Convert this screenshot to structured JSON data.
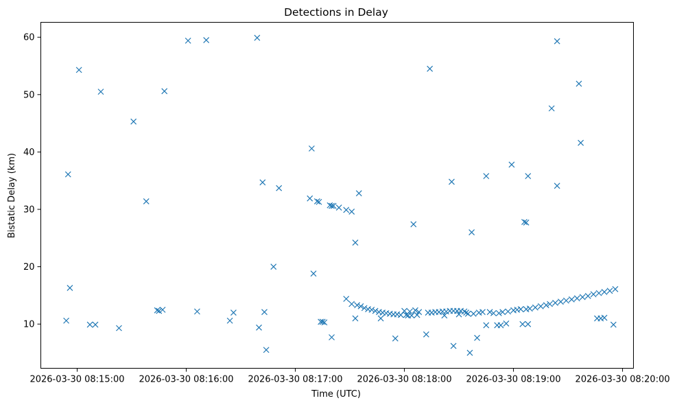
{
  "chart_data": {
    "type": "scatter",
    "title": "Detections in Delay",
    "xlabel": "Time (UTC)",
    "ylabel": "Bistatic Delay (km)",
    "marker": "x",
    "color": "#1f77b4",
    "grid": false,
    "x_ticks": [
      "2026-03-30 08:15:00",
      "2026-03-30 08:16:00",
      "2026-03-30 08:17:00",
      "2026-03-30 08:18:00",
      "2026-03-30 08:19:00",
      "2026-03-30 08:20:00"
    ],
    "y_ticks": [
      10,
      20,
      30,
      40,
      50,
      60
    ],
    "xlim": [
      "2026-03-30 08:14:40",
      "2026-03-30 08:20:06"
    ],
    "ylim": [
      2.3,
      62.6
    ],
    "points": [
      [
        "08:14:54",
        10.6
      ],
      [
        "08:14:55",
        36.1
      ],
      [
        "08:14:56",
        16.3
      ],
      [
        "08:15:01",
        54.3
      ],
      [
        "08:15:07",
        9.9
      ],
      [
        "08:15:10",
        9.9
      ],
      [
        "08:15:13",
        50.5
      ],
      [
        "08:15:23",
        9.3
      ],
      [
        "08:15:31",
        45.3
      ],
      [
        "08:15:38",
        31.4
      ],
      [
        "08:15:44",
        12.4
      ],
      [
        "08:15:45",
        12.3
      ],
      [
        "08:15:47",
        12.5
      ],
      [
        "08:15:48",
        50.6
      ],
      [
        "08:16:01",
        59.4
      ],
      [
        "08:16:06",
        12.2
      ],
      [
        "08:16:11",
        59.5
      ],
      [
        "08:16:24",
        10.6
      ],
      [
        "08:16:26",
        12.0
      ],
      [
        "08:16:39",
        59.9
      ],
      [
        "08:16:40",
        9.4
      ],
      [
        "08:16:42",
        34.7
      ],
      [
        "08:16:43",
        12.1
      ],
      [
        "08:16:44",
        5.5
      ],
      [
        "08:16:48",
        20.0
      ],
      [
        "08:16:51",
        33.7
      ],
      [
        "08:17:08",
        31.9
      ],
      [
        "08:17:09",
        40.6
      ],
      [
        "08:17:10",
        18.8
      ],
      [
        "08:17:12",
        31.4
      ],
      [
        "08:17:13",
        31.3
      ],
      [
        "08:17:14",
        10.4
      ],
      [
        "08:17:15",
        10.4
      ],
      [
        "08:17:16",
        10.3
      ],
      [
        "08:17:19",
        30.7
      ],
      [
        "08:17:20",
        30.6
      ],
      [
        "08:17:20",
        7.7
      ],
      [
        "08:17:21",
        30.6
      ],
      [
        "08:17:24",
        30.3
      ],
      [
        "08:17:28",
        14.4
      ],
      [
        "08:17:28",
        29.9
      ],
      [
        "08:17:31",
        29.6
      ],
      [
        "08:17:31",
        13.5
      ],
      [
        "08:17:33",
        24.2
      ],
      [
        "08:17:33",
        11.0
      ],
      [
        "08:17:34",
        13.3
      ],
      [
        "08:17:35",
        32.8
      ],
      [
        "08:17:36",
        13.1
      ],
      [
        "08:17:38",
        12.8
      ],
      [
        "08:17:40",
        12.6
      ],
      [
        "08:17:42",
        12.5
      ],
      [
        "08:17:44",
        12.3
      ],
      [
        "08:17:46",
        12.1
      ],
      [
        "08:17:47",
        11.0
      ],
      [
        "08:17:48",
        12.0
      ],
      [
        "08:17:50",
        11.9
      ],
      [
        "08:17:52",
        11.8
      ],
      [
        "08:17:54",
        11.7
      ],
      [
        "08:17:55",
        7.5
      ],
      [
        "08:17:56",
        11.7
      ],
      [
        "08:17:58",
        11.6
      ],
      [
        "08:18:00",
        12.3
      ],
      [
        "08:18:01",
        11.6
      ],
      [
        "08:18:02",
        11.5
      ],
      [
        "08:18:03",
        12.2
      ],
      [
        "08:18:04",
        11.5
      ],
      [
        "08:18:05",
        27.4
      ],
      [
        "08:18:06",
        12.4
      ],
      [
        "08:18:07",
        11.6
      ],
      [
        "08:18:08",
        12.1
      ],
      [
        "08:18:12",
        8.2
      ],
      [
        "08:18:13",
        12.0
      ],
      [
        "08:18:14",
        54.5
      ],
      [
        "08:18:15",
        12.0
      ],
      [
        "08:18:17",
        12.1
      ],
      [
        "08:18:19",
        12.1
      ],
      [
        "08:18:21",
        12.2
      ],
      [
        "08:18:22",
        11.5
      ],
      [
        "08:18:23",
        12.2
      ],
      [
        "08:18:25",
        12.3
      ],
      [
        "08:18:26",
        34.8
      ],
      [
        "08:18:27",
        12.3
      ],
      [
        "08:18:27",
        6.2
      ],
      [
        "08:18:29",
        12.3
      ],
      [
        "08:18:30",
        11.7
      ],
      [
        "08:18:31",
        12.3
      ],
      [
        "08:18:33",
        12.2
      ],
      [
        "08:18:34",
        12.0
      ],
      [
        "08:18:35",
        11.8
      ],
      [
        "08:18:36",
        5.0
      ],
      [
        "08:18:37",
        26.0
      ],
      [
        "08:18:38",
        11.8
      ],
      [
        "08:18:40",
        7.6
      ],
      [
        "08:18:41",
        12.0
      ],
      [
        "08:18:43",
        12.1
      ],
      [
        "08:18:45",
        35.8
      ],
      [
        "08:18:45",
        9.8
      ],
      [
        "08:18:47",
        12.1
      ],
      [
        "08:18:49",
        11.9
      ],
      [
        "08:18:51",
        9.8
      ],
      [
        "08:18:52",
        11.9
      ],
      [
        "08:18:53",
        9.8
      ],
      [
        "08:18:54",
        12.1
      ],
      [
        "08:18:56",
        10.1
      ],
      [
        "08:18:57",
        12.2
      ],
      [
        "08:18:59",
        37.8
      ],
      [
        "08:19:00",
        12.4
      ],
      [
        "08:19:02",
        12.5
      ],
      [
        "08:19:04",
        12.6
      ],
      [
        "08:19:05",
        10.0
      ],
      [
        "08:19:06",
        27.8
      ],
      [
        "08:19:07",
        12.6
      ],
      [
        "08:19:07",
        27.7
      ],
      [
        "08:19:08",
        35.8
      ],
      [
        "08:19:08",
        10.0
      ],
      [
        "08:19:09",
        12.7
      ],
      [
        "08:19:12",
        12.9
      ],
      [
        "08:19:15",
        13.1
      ],
      [
        "08:19:18",
        13.3
      ],
      [
        "08:19:20",
        13.5
      ],
      [
        "08:19:21",
        47.6
      ],
      [
        "08:19:23",
        13.7
      ],
      [
        "08:19:24",
        34.1
      ],
      [
        "08:19:24",
        59.3
      ],
      [
        "08:19:26",
        13.9
      ],
      [
        "08:19:29",
        14.1
      ],
      [
        "08:19:32",
        14.3
      ],
      [
        "08:19:35",
        14.5
      ],
      [
        "08:19:36",
        51.9
      ],
      [
        "08:19:37",
        41.6
      ],
      [
        "08:19:38",
        14.7
      ],
      [
        "08:19:41",
        14.9
      ],
      [
        "08:19:44",
        15.2
      ],
      [
        "08:19:46",
        11.0
      ],
      [
        "08:19:47",
        15.4
      ],
      [
        "08:19:48",
        11.0
      ],
      [
        "08:19:50",
        15.6
      ],
      [
        "08:19:50",
        11.1
      ],
      [
        "08:19:53",
        15.8
      ],
      [
        "08:19:55",
        9.9
      ],
      [
        "08:19:56",
        16.1
      ]
    ]
  }
}
